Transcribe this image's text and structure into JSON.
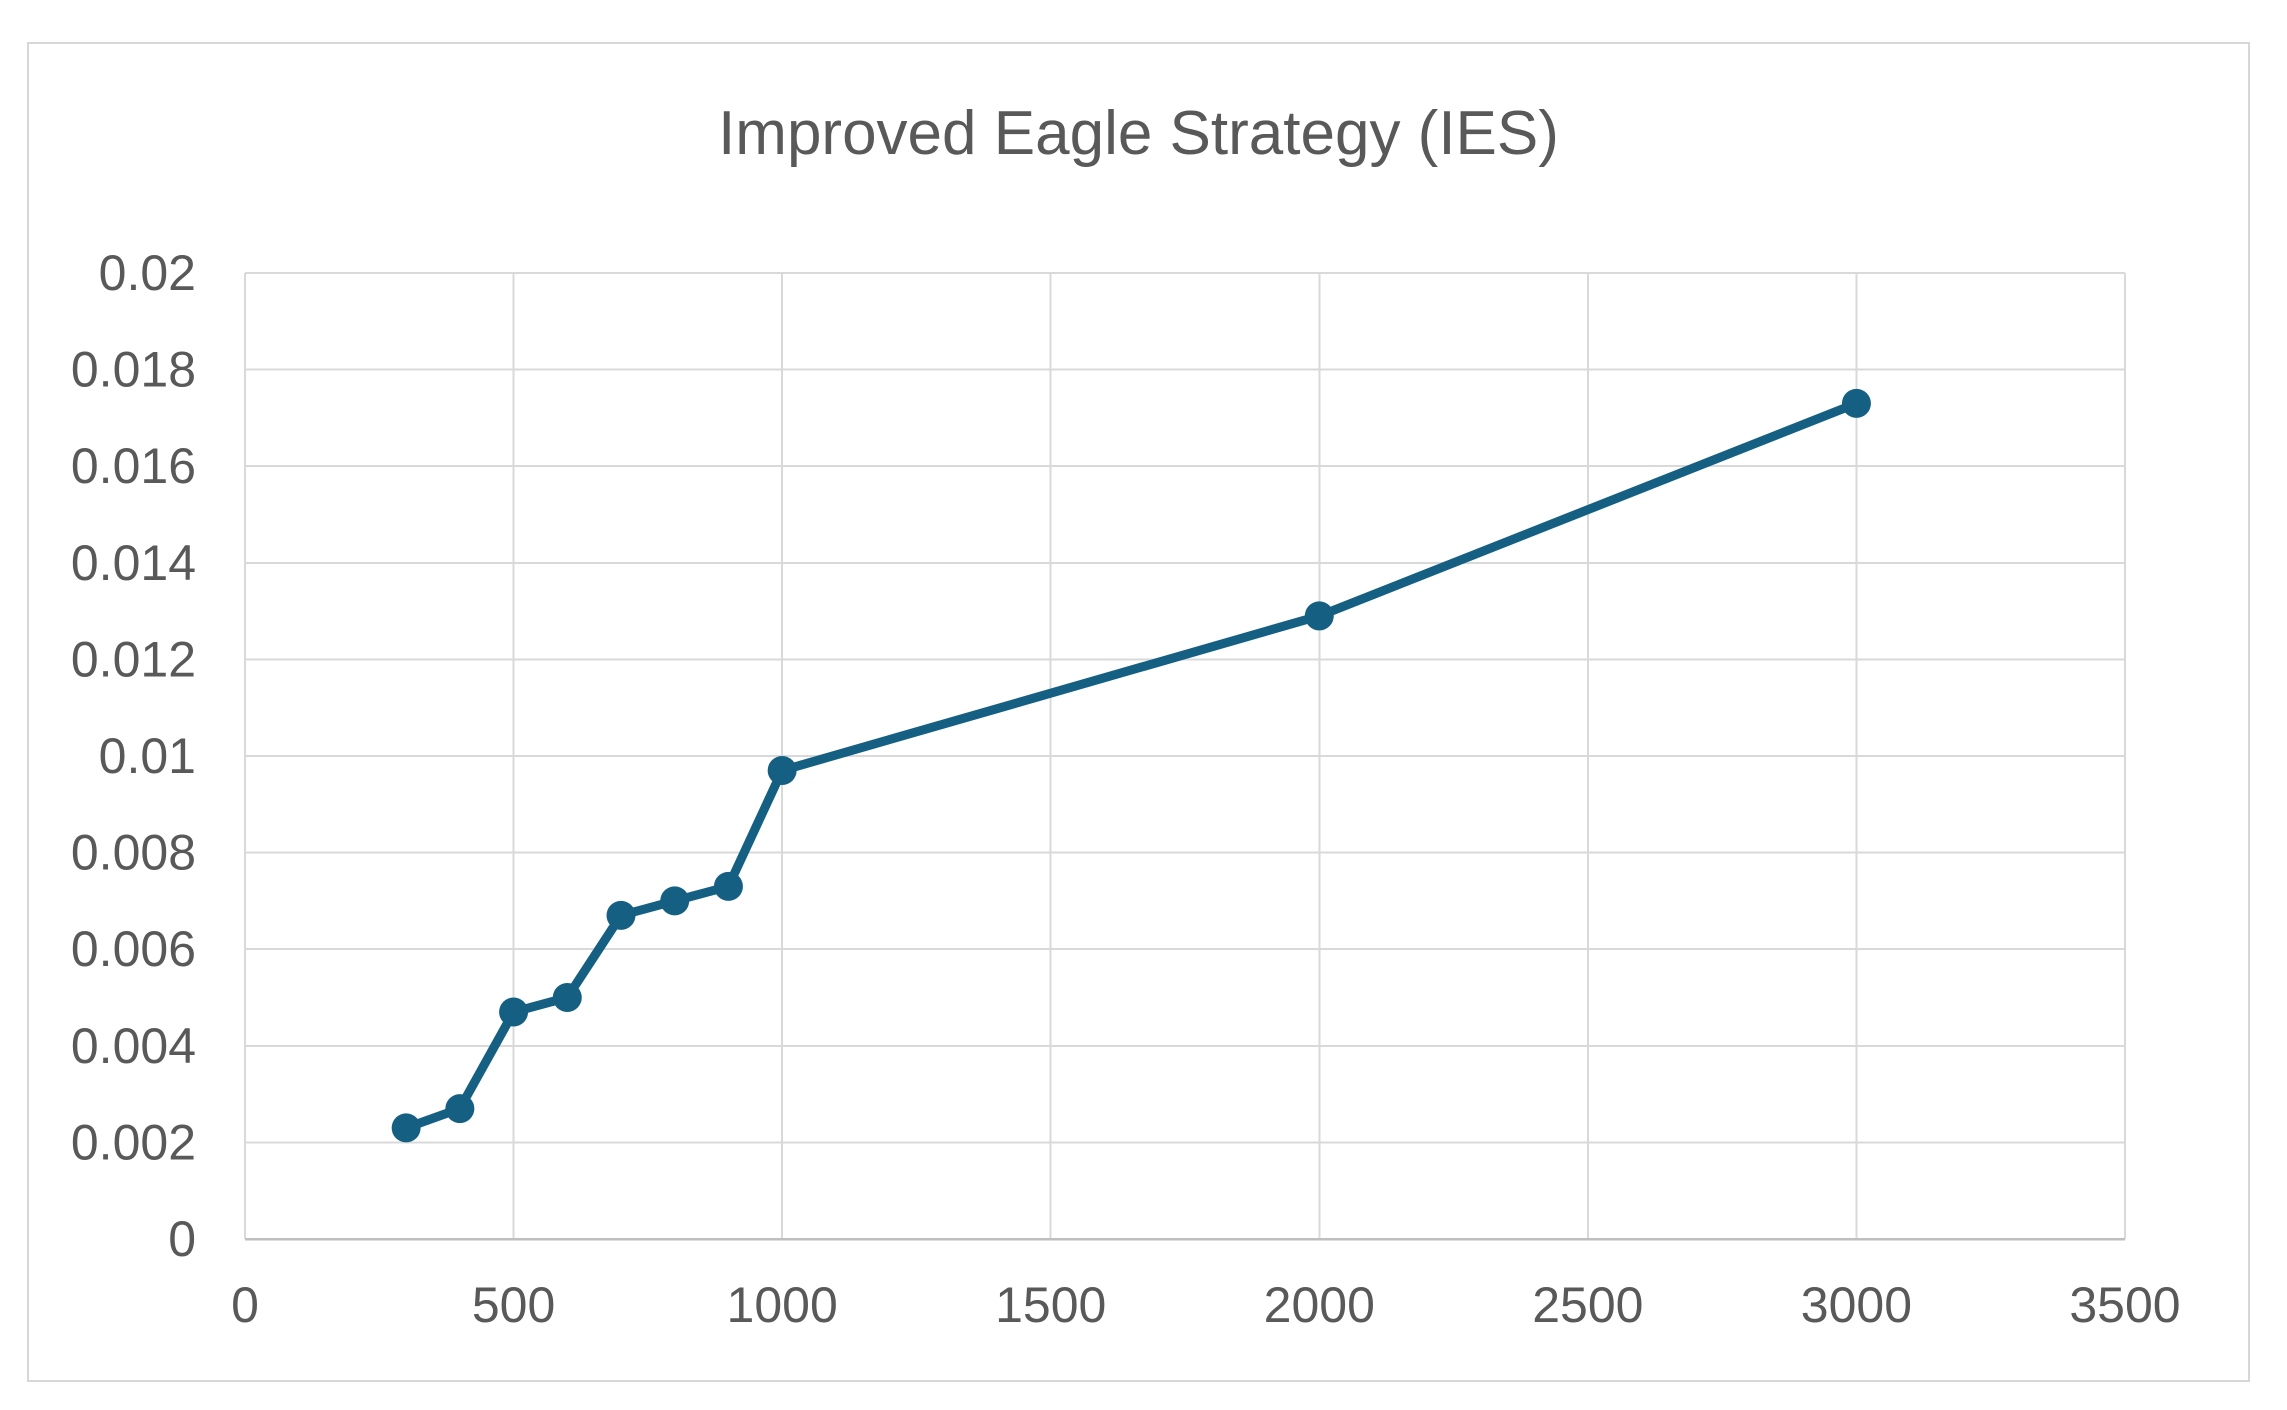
{
  "chart_data": {
    "type": "line",
    "title": "Improved Eagle Strategy (IES)",
    "xlabel": "",
    "ylabel": "",
    "xlim": [
      0,
      3500
    ],
    "ylim": [
      0,
      0.02
    ],
    "grid": true,
    "legend": false,
    "x_ticks": [
      0,
      500,
      1000,
      1500,
      2000,
      2500,
      3000,
      3500
    ],
    "x_tick_labels": [
      "0",
      "500",
      "1000",
      "1500",
      "2000",
      "2500",
      "3000",
      "3500"
    ],
    "y_ticks": [
      0,
      0.002,
      0.004,
      0.006,
      0.008,
      0.01,
      0.012,
      0.014,
      0.016,
      0.018,
      0.02
    ],
    "y_tick_labels": [
      "0",
      "0.002",
      "0.004",
      "0.006",
      "0.008",
      "0.01",
      "0.012",
      "0.014",
      "0.016",
      "0.018",
      "0.02"
    ],
    "series": [
      {
        "name": "IES",
        "x": [
          300,
          400,
          500,
          600,
          700,
          800,
          900,
          1000,
          2000,
          3000
        ],
        "y": [
          0.0023,
          0.0027,
          0.0047,
          0.005,
          0.0067,
          0.007,
          0.0073,
          0.0097,
          0.0129,
          0.0173
        ]
      }
    ],
    "colors": {
      "series": "#156082",
      "text": "#595959",
      "gridline": "#d9d9d9",
      "axis_line": "#bfbfbf",
      "background": "#ffffff",
      "frame_border": "#d7d7d7"
    }
  }
}
